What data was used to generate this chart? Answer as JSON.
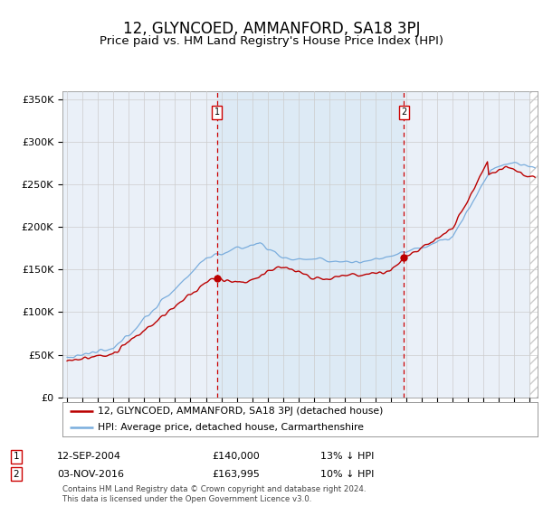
{
  "title": "12, GLYNCOED, AMMANFORD, SA18 3PJ",
  "subtitle": "Price paid vs. HM Land Registry's House Price Index (HPI)",
  "legend_line1": "12, GLYNCOED, AMMANFORD, SA18 3PJ (detached house)",
  "legend_line2": "HPI: Average price, detached house, Carmarthenshire",
  "sale1_date": "12-SEP-2004",
  "sale1_price": 140000,
  "sale1_hpi_diff": "13% ↓ HPI",
  "sale1_year": 2004.71,
  "sale2_date": "03-NOV-2016",
  "sale2_price": 163995,
  "sale2_hpi_diff": "10% ↓ HPI",
  "sale2_year": 2016.84,
  "ylim": [
    0,
    360000
  ],
  "xlim_start": 1994.7,
  "xlim_end": 2025.5,
  "yticks": [
    0,
    50000,
    100000,
    150000,
    200000,
    250000,
    300000,
    350000
  ],
  "ytick_labels": [
    "£0",
    "£50K",
    "£100K",
    "£150K",
    "£200K",
    "£250K",
    "£300K",
    "£350K"
  ],
  "price_line_color": "#bb0000",
  "hpi_line_color": "#7aaddd",
  "vline_color": "#cc0000",
  "shade_color": "#d8e8f4",
  "background_color": "#eaf0f8",
  "plot_bg_color": "#ffffff",
  "footer": "Contains HM Land Registry data © Crown copyright and database right 2024.\nThis data is licensed under the Open Government Licence v3.0.",
  "title_fontsize": 12,
  "subtitle_fontsize": 9.5,
  "axis_fontsize": 8
}
